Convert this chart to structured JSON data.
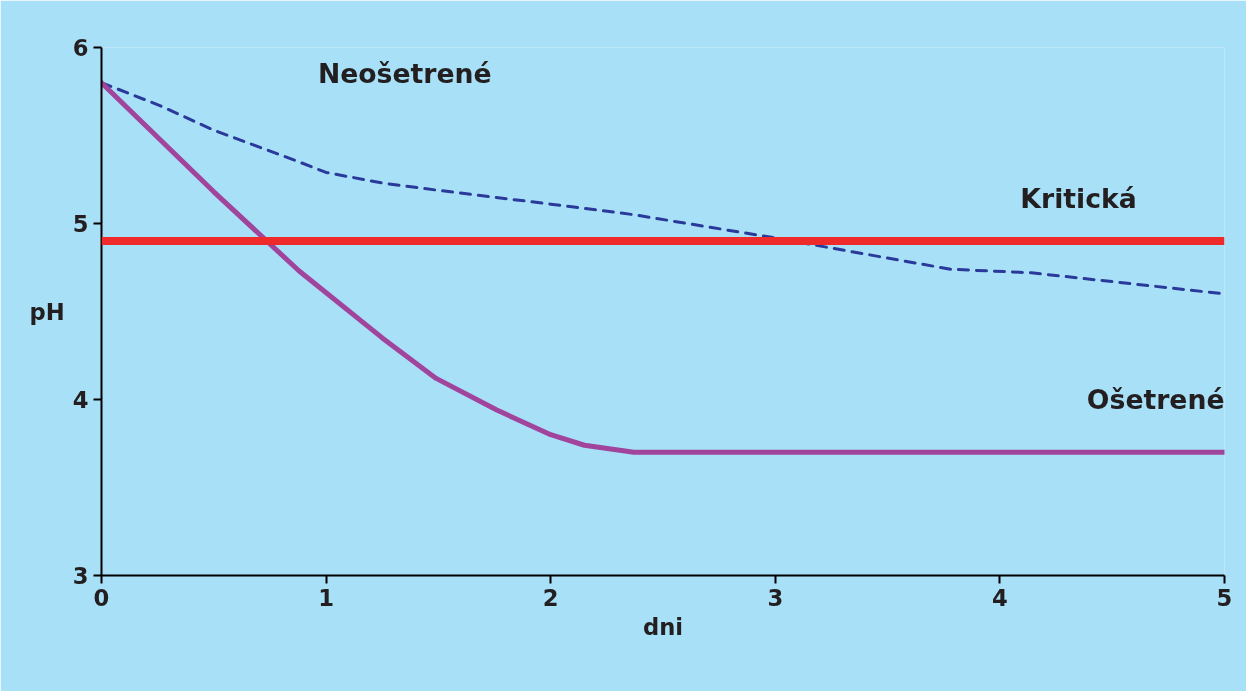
{
  "chart_data": {
    "type": "line",
    "xlabel": "dni",
    "ylabel": "pH",
    "xlim": [
      0,
      5
    ],
    "ylim": [
      3,
      6
    ],
    "xticks": [
      0,
      1,
      2,
      3,
      4,
      5
    ],
    "yticks": [
      3,
      4,
      5,
      6
    ],
    "grid": false,
    "series": [
      {
        "name": "Neošetrené",
        "color": "#2a3a9a",
        "line_style": "dashed",
        "x": [
          0,
          0.26,
          0.5,
          0.88,
          1.0,
          1.25,
          1.49,
          2.0,
          2.37,
          2.99,
          3.34,
          3.78,
          4.14,
          5
        ],
        "values": [
          5.8,
          5.67,
          5.53,
          5.35,
          5.29,
          5.23,
          5.19,
          5.11,
          5.05,
          4.92,
          4.84,
          4.74,
          4.72,
          4.6
        ]
      },
      {
        "name": "Ošetrené",
        "color": "#a0449c",
        "line_style": "solid",
        "x": [
          0,
          0.5,
          0.88,
          1.25,
          1.49,
          1.76,
          2.0,
          2.15,
          2.37,
          5
        ],
        "values": [
          5.8,
          5.18,
          4.73,
          4.35,
          4.12,
          3.94,
          3.8,
          3.74,
          3.7,
          3.7
        ]
      }
    ],
    "ref_lines": [
      {
        "axis": "y",
        "value": 4.9,
        "label": "Kritická",
        "color": "#ee2a2a"
      }
    ]
  }
}
